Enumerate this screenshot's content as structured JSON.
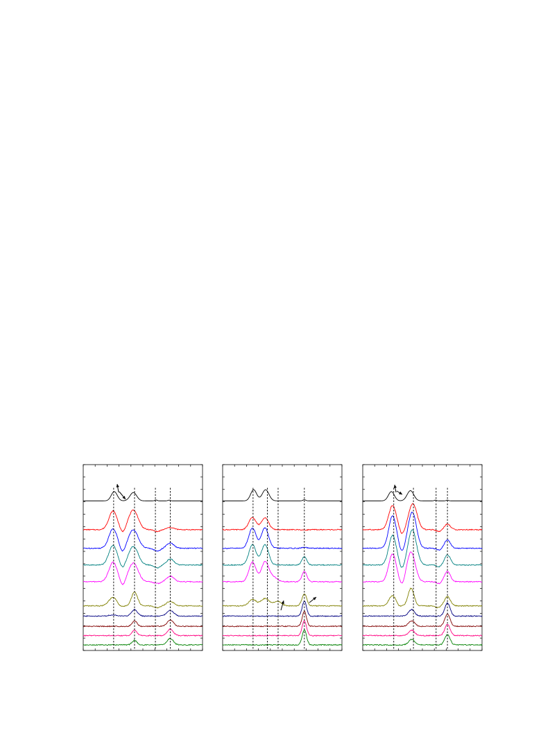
{
  "chart_data": [
    {
      "type": "line",
      "title": "",
      "xlabel": "",
      "ylabel": "",
      "xlim": [
        0,
        10
      ],
      "ylim": [
        0,
        10
      ],
      "x_ticks": [
        0,
        1,
        2,
        3,
        4,
        5,
        6,
        7,
        8,
        9,
        10
      ],
      "ref_lines_x": [
        2.55,
        4.3,
        6.05,
        7.3
      ],
      "series": [
        {
          "color": "#000000",
          "offset": 8.05,
          "peaks": [
            [
              2.6,
              0.5,
              0.25
            ],
            [
              4.2,
              0.45,
              0.28
            ],
            [
              6.1,
              0.05,
              0.1
            ],
            [
              7.2,
              0.04,
              0.1
            ]
          ]
        },
        {
          "color": "#ff0000",
          "offset": 6.5,
          "peaks": [
            [
              2.5,
              1.0,
              0.35
            ],
            [
              3.3,
              -0.25,
              0.2
            ],
            [
              4.2,
              1.05,
              0.4
            ],
            [
              6.2,
              -0.1,
              0.25
            ],
            [
              7.3,
              0.12,
              0.3
            ]
          ]
        },
        {
          "color": "#0000ff",
          "offset": 5.5,
          "peaks": [
            [
              2.5,
              1.05,
              0.35
            ],
            [
              3.3,
              -0.3,
              0.2
            ],
            [
              4.2,
              1.0,
              0.4
            ],
            [
              6.2,
              -0.15,
              0.25
            ],
            [
              7.3,
              0.28,
              0.3
            ]
          ]
        },
        {
          "color": "#008080",
          "offset": 4.6,
          "peaks": [
            [
              2.5,
              1.05,
              0.35
            ],
            [
              3.3,
              -0.25,
              0.2
            ],
            [
              4.2,
              1.0,
              0.4
            ],
            [
              6.2,
              -0.15,
              0.25
            ],
            [
              7.3,
              0.32,
              0.3
            ]
          ]
        },
        {
          "color": "#ff00ff",
          "offset": 3.7,
          "peaks": [
            [
              2.5,
              1.05,
              0.35
            ],
            [
              3.3,
              -0.3,
              0.2
            ],
            [
              4.2,
              1.0,
              0.4
            ],
            [
              6.2,
              -0.1,
              0.25
            ],
            [
              7.3,
              0.3,
              0.3
            ]
          ]
        },
        {
          "color": "#808000",
          "offset": 2.4,
          "peaks": [
            [
              2.5,
              0.45,
              0.35
            ],
            [
              3.1,
              -0.1,
              0.2
            ],
            [
              4.3,
              0.75,
              0.25
            ],
            [
              6.2,
              -0.1,
              0.25
            ],
            [
              7.3,
              0.25,
              0.3
            ]
          ]
        },
        {
          "color": "#000080",
          "offset": 1.85,
          "peaks": [
            [
              2.5,
              0.06,
              0.35
            ],
            [
              4.3,
              0.35,
              0.25
            ],
            [
              7.3,
              0.3,
              0.3
            ]
          ]
        },
        {
          "color": "#800000",
          "offset": 1.3,
          "peaks": [
            [
              4.3,
              0.3,
              0.2
            ],
            [
              7.3,
              0.35,
              0.25
            ]
          ]
        },
        {
          "color": "#ff0080",
          "offset": 0.8,
          "peaks": [
            [
              4.3,
              0.3,
              0.2
            ],
            [
              7.3,
              0.35,
              0.25
            ]
          ]
        },
        {
          "color": "#008000",
          "offset": 0.3,
          "peaks": [
            [
              4.3,
              0.25,
              0.2
            ],
            [
              7.3,
              0.35,
              0.25
            ]
          ]
        }
      ]
    },
    {
      "type": "line",
      "title": "",
      "xlabel": "",
      "ylabel": "",
      "xlim": [
        0,
        10
      ],
      "ylim": [
        0,
        10
      ],
      "x_ticks": [
        0,
        1,
        2,
        3,
        4,
        5,
        6,
        7,
        8,
        9,
        10
      ],
      "ref_lines_x": [
        2.55,
        3.75,
        4.65,
        6.85
      ],
      "series": [
        {
          "color": "#000000",
          "offset": 8.05,
          "peaks": [
            [
              2.6,
              0.6,
              0.25
            ],
            [
              3.6,
              0.6,
              0.28
            ],
            [
              6.85,
              0.06,
              0.12
            ]
          ]
        },
        {
          "color": "#ff0000",
          "offset": 6.5,
          "peaks": [
            [
              2.5,
              0.65,
              0.3
            ],
            [
              3.55,
              0.65,
              0.3
            ],
            [
              6.85,
              -0.02,
              0.2
            ]
          ]
        },
        {
          "color": "#0000ff",
          "offset": 5.5,
          "peaks": [
            [
              2.5,
              1.1,
              0.3
            ],
            [
              3.55,
              1.1,
              0.3
            ],
            [
              6.85,
              0.05,
              0.2
            ]
          ]
        },
        {
          "color": "#008080",
          "offset": 4.6,
          "peaks": [
            [
              2.5,
              1.1,
              0.3
            ],
            [
              3.55,
              1.1,
              0.3
            ],
            [
              6.85,
              0.45,
              0.2
            ]
          ]
        },
        {
          "color": "#ff00ff",
          "offset": 3.7,
          "peaks": [
            [
              2.5,
              1.05,
              0.3
            ],
            [
              3.55,
              1.05,
              0.3
            ],
            [
              4.2,
              0.25,
              0.35
            ],
            [
              6.85,
              0.55,
              0.2
            ]
          ]
        },
        {
          "color": "#808000",
          "offset": 2.4,
          "peaks": [
            [
              2.5,
              0.35,
              0.3
            ],
            [
              3.55,
              0.4,
              0.35
            ],
            [
              4.6,
              0.25,
              0.3
            ],
            [
              6.85,
              0.65,
              0.2
            ]
          ]
        },
        {
          "color": "#000080",
          "offset": 1.85,
          "peaks": [
            [
              6.85,
              0.8,
              0.18
            ]
          ]
        },
        {
          "color": "#800000",
          "offset": 1.3,
          "peaks": [
            [
              6.85,
              0.8,
              0.18
            ]
          ]
        },
        {
          "color": "#ff0080",
          "offset": 0.8,
          "peaks": [
            [
              6.85,
              0.8,
              0.18
            ]
          ]
        },
        {
          "color": "#008000",
          "offset": 0.3,
          "peaks": [
            [
              6.85,
              0.8,
              0.18
            ]
          ]
        }
      ]
    },
    {
      "type": "line",
      "title": "",
      "xlabel": "",
      "ylabel": "",
      "xlim": [
        0,
        10
      ],
      "ylim": [
        0,
        10
      ],
      "x_ticks": [
        0,
        1,
        2,
        3,
        4,
        5,
        6,
        7,
        8,
        9,
        10
      ],
      "ref_lines_x": [
        2.6,
        4.25,
        6.15,
        7.1
      ],
      "series": [
        {
          "color": "#000000",
          "offset": 8.05,
          "peaks": [
            [
              2.4,
              0.5,
              0.25
            ],
            [
              4.0,
              0.55,
              0.28
            ],
            [
              6.1,
              0.04,
              0.1
            ],
            [
              7.1,
              0.04,
              0.1
            ]
          ]
        },
        {
          "color": "#ff0000",
          "offset": 6.5,
          "peaks": [
            [
              2.5,
              1.3,
              0.32
            ],
            [
              3.3,
              -0.3,
              0.2
            ],
            [
              4.2,
              1.4,
              0.35
            ],
            [
              6.4,
              -0.1,
              0.2
            ],
            [
              7.1,
              0.3,
              0.25
            ]
          ]
        },
        {
          "color": "#0000ff",
          "offset": 5.5,
          "peaks": [
            [
              2.5,
              1.75,
              0.32
            ],
            [
              3.3,
              -0.3,
              0.2
            ],
            [
              4.15,
              1.95,
              0.35
            ],
            [
              6.4,
              -0.1,
              0.2
            ],
            [
              7.1,
              0.45,
              0.25
            ]
          ]
        },
        {
          "color": "#008080",
          "offset": 4.6,
          "peaks": [
            [
              2.5,
              1.6,
              0.32
            ],
            [
              3.3,
              -0.3,
              0.2
            ],
            [
              4.15,
              1.9,
              0.35
            ],
            [
              6.4,
              -0.1,
              0.2
            ],
            [
              7.1,
              0.55,
              0.25
            ]
          ]
        },
        {
          "color": "#ff00ff",
          "offset": 3.7,
          "peaks": [
            [
              2.5,
              1.5,
              0.32
            ],
            [
              3.3,
              -0.3,
              0.2
            ],
            [
              4.05,
              1.6,
              0.35
            ],
            [
              6.4,
              -0.1,
              0.2
            ],
            [
              7.1,
              0.55,
              0.25
            ]
          ]
        },
        {
          "color": "#808000",
          "offset": 2.4,
          "peaks": [
            [
              2.5,
              0.55,
              0.3
            ],
            [
              3.0,
              -0.1,
              0.15
            ],
            [
              4.05,
              0.95,
              0.25
            ],
            [
              6.3,
              -0.1,
              0.2
            ],
            [
              7.1,
              0.5,
              0.25
            ]
          ]
        },
        {
          "color": "#000080",
          "offset": 1.85,
          "peaks": [
            [
              4.1,
              0.35,
              0.25
            ],
            [
              7.1,
              0.7,
              0.22
            ]
          ]
        },
        {
          "color": "#800000",
          "offset": 1.3,
          "peaks": [
            [
              4.1,
              0.3,
              0.25
            ],
            [
              7.1,
              0.65,
              0.22
            ]
          ]
        },
        {
          "color": "#ff0080",
          "offset": 0.8,
          "peaks": [
            [
              4.1,
              0.3,
              0.25
            ],
            [
              7.1,
              0.6,
              0.22
            ]
          ]
        },
        {
          "color": "#008000",
          "offset": 0.3,
          "peaks": [
            [
              4.1,
              0.3,
              0.25
            ],
            [
              7.1,
              0.55,
              0.22
            ]
          ]
        }
      ]
    }
  ]
}
